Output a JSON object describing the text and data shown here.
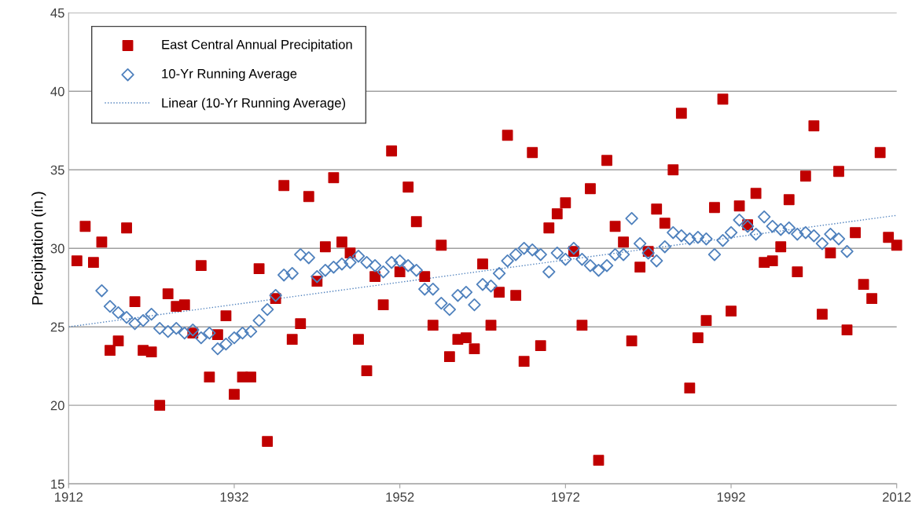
{
  "chart_data": {
    "type": "scatter",
    "ylabel": "Precipitation (in.)",
    "xlim": [
      1912,
      2012
    ],
    "xticks": [
      1912,
      1932,
      1952,
      1972,
      1992,
      2012
    ],
    "ylim": [
      15,
      45
    ],
    "yticks": [
      15,
      20,
      25,
      30,
      35,
      40,
      45
    ],
    "grid": "y",
    "legend": "top left",
    "series": [
      {
        "name": "East Central Annual Precipitation",
        "marker": "square",
        "color": "#c00000",
        "x": [
          1913,
          1914,
          1915,
          1916,
          1917,
          1918,
          1919,
          1920,
          1921,
          1922,
          1923,
          1924,
          1925,
          1926,
          1927,
          1928,
          1929,
          1930,
          1931,
          1932,
          1933,
          1934,
          1935,
          1936,
          1937,
          1938,
          1939,
          1940,
          1941,
          1942,
          1943,
          1944,
          1945,
          1946,
          1947,
          1948,
          1949,
          1950,
          1951,
          1952,
          1953,
          1954,
          1955,
          1956,
          1957,
          1958,
          1959,
          1960,
          1961,
          1962,
          1963,
          1964,
          1965,
          1966,
          1967,
          1968,
          1969,
          1970,
          1971,
          1972,
          1973,
          1974,
          1975,
          1976,
          1977,
          1978,
          1979,
          1980,
          1981,
          1982,
          1983,
          1984,
          1985,
          1986,
          1987,
          1988,
          1989,
          1990,
          1991,
          1992,
          1993,
          1994,
          1995,
          1996,
          1997,
          1998,
          1999,
          2000,
          2001,
          2002,
          2003,
          2004,
          2005,
          2006,
          2007,
          2008,
          2009,
          2010,
          2011,
          2012
        ],
        "values": [
          29.2,
          31.4,
          29.1,
          30.4,
          23.5,
          24.1,
          31.3,
          26.6,
          23.5,
          23.4,
          20.0,
          27.1,
          26.3,
          26.4,
          24.6,
          28.9,
          21.8,
          24.5,
          25.7,
          20.7,
          21.8,
          21.8,
          28.7,
          17.7,
          26.8,
          34.0,
          24.2,
          25.2,
          33.3,
          27.9,
          30.1,
          34.5,
          30.4,
          29.7,
          24.2,
          22.2,
          28.2,
          26.4,
          36.2,
          28.5,
          33.9,
          31.7,
          28.2,
          25.1,
          30.2,
          23.1,
          24.2,
          24.3,
          23.6,
          29.0,
          25.1,
          27.2,
          37.2,
          27.0,
          22.8,
          36.1,
          23.8,
          31.3,
          32.2,
          32.9,
          29.8,
          25.1,
          33.8,
          16.5,
          35.6,
          31.4,
          30.4,
          24.1,
          28.8,
          29.8,
          32.5,
          31.6,
          35.0,
          38.6,
          21.1,
          24.3,
          25.4,
          32.6,
          39.5,
          26.0,
          32.7,
          31.5,
          33.5,
          29.1,
          29.2,
          30.1,
          33.1,
          28.5,
          34.6,
          37.8,
          25.8,
          29.7,
          34.9,
          24.8,
          31.0,
          27.7,
          26.8,
          36.1,
          30.7,
          30.2
        ]
      },
      {
        "name": "10-Yr Running Average",
        "marker": "diamond",
        "color": "#4f81bd",
        "x": [
          1916,
          1917,
          1918,
          1919,
          1920,
          1921,
          1922,
          1923,
          1924,
          1925,
          1926,
          1927,
          1928,
          1929,
          1930,
          1931,
          1932,
          1933,
          1934,
          1935,
          1936,
          1937,
          1938,
          1939,
          1940,
          1941,
          1942,
          1943,
          1944,
          1945,
          1946,
          1947,
          1948,
          1949,
          1950,
          1951,
          1952,
          1953,
          1954,
          1955,
          1956,
          1957,
          1958,
          1959,
          1960,
          1961,
          1962,
          1963,
          1964,
          1965,
          1966,
          1967,
          1968,
          1969,
          1970,
          1971,
          1972,
          1973,
          1974,
          1975,
          1976,
          1977,
          1978,
          1979,
          1980,
          1981,
          1982,
          1983,
          1984,
          1985,
          1986,
          1987,
          1988,
          1989,
          1990,
          1991,
          1992,
          1993,
          1994,
          1995,
          1996,
          1997,
          1998,
          1999,
          2000,
          2001,
          2002,
          2003,
          2004,
          2005,
          2006
        ],
        "values": [
          27.3,
          26.3,
          25.9,
          25.6,
          25.2,
          25.4,
          25.8,
          24.9,
          24.7,
          24.9,
          24.6,
          24.8,
          24.3,
          24.6,
          23.6,
          23.9,
          24.3,
          24.6,
          24.7,
          25.4,
          26.1,
          27.0,
          28.3,
          28.4,
          29.6,
          29.4,
          28.2,
          28.6,
          28.8,
          29.0,
          29.1,
          29.5,
          29.1,
          28.9,
          28.5,
          29.1,
          29.2,
          28.9,
          28.6,
          27.4,
          27.4,
          26.5,
          26.1,
          27.0,
          27.2,
          26.4,
          27.7,
          27.6,
          28.4,
          29.2,
          29.6,
          30.0,
          29.9,
          29.6,
          28.5,
          29.7,
          29.3,
          30.0,
          29.3,
          28.9,
          28.6,
          28.9,
          29.6,
          29.6,
          31.9,
          30.3,
          29.7,
          29.2,
          30.1,
          31.0,
          30.8,
          30.6,
          30.7,
          30.6,
          29.6,
          30.5,
          31.0,
          31.8,
          31.4,
          30.9,
          32.0,
          31.4,
          31.2,
          31.3,
          30.9,
          31.0,
          30.8,
          30.3,
          30.9,
          30.6,
          29.8
        ]
      },
      {
        "name": "Linear (10-Yr Running Average)",
        "type": "line",
        "line_style": "dotted",
        "marker": "none",
        "color": "#4f81bd",
        "x": [
          1912,
          2012
        ],
        "values": [
          25.0,
          32.1
        ]
      }
    ]
  }
}
